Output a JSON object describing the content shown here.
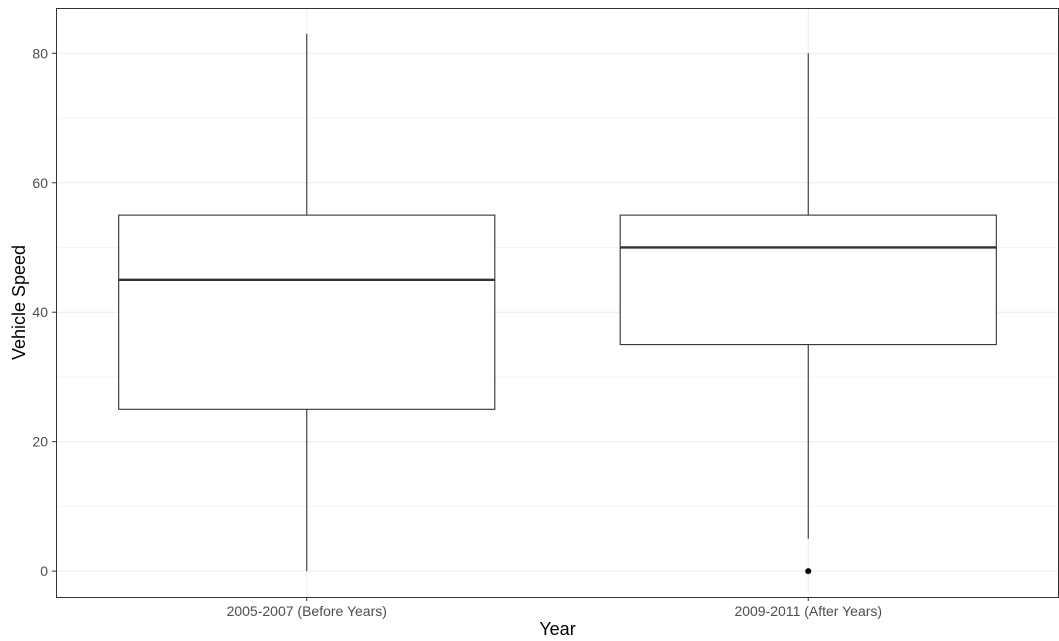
{
  "chart_data": {
    "type": "boxplot",
    "title": "",
    "xlabel": "Year",
    "ylabel": "Vehicle Speed",
    "categories": [
      "2005-2007 (Before Years)",
      "2009-2011 (After Years)"
    ],
    "boxes": [
      {
        "category": "2005-2007 (Before Years)",
        "min": 0,
        "q1": 25,
        "median": 45,
        "q3": 55,
        "max": 83,
        "outliers": []
      },
      {
        "category": "2009-2011 (After Years)",
        "min": 5,
        "q1": 35,
        "median": 50,
        "q3": 55,
        "max": 80,
        "outliers": [
          0
        ]
      }
    ],
    "yticks": [
      0,
      20,
      40,
      60,
      80
    ],
    "ylim": [
      -4,
      87
    ],
    "grid": true,
    "legend": "none",
    "colors": {
      "box_fill": "#ffffff",
      "box_stroke": "#333333",
      "grid_major": "#ebebeb",
      "grid_minor": "#f5f5f5",
      "panel_border": "#333333"
    }
  }
}
